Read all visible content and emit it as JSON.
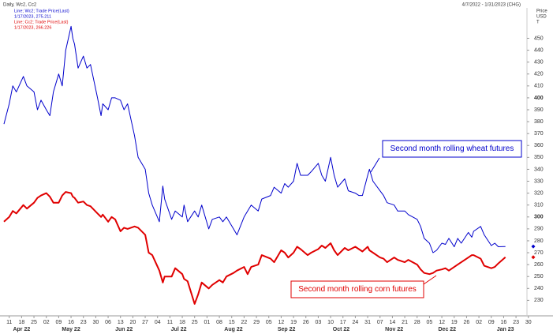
{
  "chart_data": {
    "type": "line",
    "title": "Daily, Wc2, Cc2",
    "date_range": "4/7/2022 - 1/31/2023 (CHG)",
    "y_axis_label": [
      "Price",
      "USD",
      "T"
    ],
    "x": [
      "2022-04-08",
      "2022-04-11",
      "2022-04-13",
      "2022-04-15",
      "2022-04-19",
      "2022-04-21",
      "2022-04-25",
      "2022-04-27",
      "2022-04-29",
      "2022-05-02",
      "2022-05-04",
      "2022-05-06",
      "2022-05-09",
      "2022-05-11",
      "2022-05-13",
      "2022-05-16",
      "2022-05-17",
      "2022-05-18",
      "2022-05-20",
      "2022-05-23",
      "2022-05-25",
      "2022-05-27",
      "2022-05-31",
      "2022-06-02",
      "2022-06-03",
      "2022-06-06",
      "2022-06-08",
      "2022-06-10",
      "2022-06-13",
      "2022-06-15",
      "2022-06-17",
      "2022-06-21",
      "2022-06-23",
      "2022-06-27",
      "2022-06-29",
      "2022-07-01",
      "2022-07-05",
      "2022-07-07",
      "2022-07-08",
      "2022-07-12",
      "2022-07-14",
      "2022-07-18",
      "2022-07-19",
      "2022-07-21",
      "2022-07-25",
      "2022-07-27",
      "2022-07-29",
      "2022-08-02",
      "2022-08-04",
      "2022-08-08",
      "2022-08-10",
      "2022-08-12",
      "2022-08-16",
      "2022-08-18",
      "2022-08-22",
      "2022-08-24",
      "2022-08-26",
      "2022-08-30",
      "2022-09-01",
      "2022-09-06",
      "2022-09-08",
      "2022-09-12",
      "2022-09-14",
      "2022-09-16",
      "2022-09-19",
      "2022-09-21",
      "2022-09-23",
      "2022-09-27",
      "2022-09-29",
      "2022-10-03",
      "2022-10-05",
      "2022-10-07",
      "2022-10-10",
      "2022-10-12",
      "2022-10-14",
      "2022-10-18",
      "2022-10-20",
      "2022-10-24",
      "2022-10-26",
      "2022-10-28",
      "2022-10-31",
      "2022-11-01",
      "2022-11-03",
      "2022-11-07",
      "2022-11-09",
      "2022-11-11",
      "2022-11-15",
      "2022-11-17",
      "2022-11-21",
      "2022-11-23",
      "2022-11-28",
      "2022-11-30",
      "2022-12-02",
      "2022-12-05",
      "2022-12-07",
      "2022-12-09",
      "2022-12-12",
      "2022-12-14",
      "2022-12-16",
      "2022-12-19",
      "2022-12-21",
      "2022-12-23",
      "2022-12-27",
      "2022-12-29",
      "2022-12-30",
      "2023-01-03",
      "2023-01-05",
      "2023-01-09",
      "2023-01-11",
      "2023-01-13",
      "2023-01-17"
    ],
    "series": [
      {
        "name": "Line; Wc2; Trade Price(Last)",
        "legend_note": "1/17/2023, 275.211",
        "color": "#0000cc",
        "values": [
          378,
          395,
          410,
          405,
          418,
          410,
          405,
          390,
          398,
          390,
          385,
          405,
          420,
          410,
          440,
          460,
          450,
          445,
          425,
          435,
          425,
          428,
          400,
          385,
          395,
          390,
          400,
          400,
          398,
          390,
          395,
          368,
          350,
          340,
          320,
          310,
          296,
          326,
          315,
          298,
          305,
          300,
          310,
          296,
          305,
          300,
          310,
          290,
          298,
          300,
          296,
          300,
          290,
          285,
          300,
          305,
          310,
          305,
          315,
          318,
          325,
          320,
          328,
          325,
          330,
          345,
          335,
          335,
          338,
          345,
          335,
          330,
          350,
          335,
          325,
          332,
          322,
          320,
          318,
          318,
          335,
          340,
          330,
          322,
          318,
          312,
          310,
          305,
          305,
          302,
          298,
          292,
          282,
          278,
          270,
          272,
          278,
          277,
          282,
          275,
          282,
          278,
          287,
          283,
          288,
          292,
          285,
          276,
          278,
          275,
          275.211
        ]
      },
      {
        "name": "Line; Cc2; Trade Price(Last)",
        "legend_note": "1/17/2023, 266.226",
        "color": "#e00000",
        "values": [
          296,
          300,
          305,
          303,
          310,
          307,
          312,
          316,
          318,
          320,
          317,
          312,
          312,
          318,
          321,
          320,
          317,
          316,
          312,
          313,
          310,
          309,
          303,
          300,
          302,
          296,
          300,
          298,
          288,
          291,
          290,
          292,
          291,
          285,
          270,
          268,
          255,
          245,
          250,
          250,
          257,
          252,
          248,
          246,
          227,
          235,
          245,
          240,
          243,
          247,
          245,
          250,
          253,
          255,
          258,
          252,
          258,
          260,
          268,
          265,
          262,
          272,
          270,
          266,
          270,
          275,
          273,
          268,
          270,
          273,
          276,
          274,
          278,
          272,
          268,
          274,
          272,
          275,
          273,
          271,
          275,
          272,
          270,
          266,
          265,
          262,
          266,
          264,
          262,
          264,
          260,
          256,
          253,
          252,
          253,
          255,
          256,
          257,
          255,
          258,
          260,
          262,
          266,
          268,
          268,
          265,
          259,
          257,
          258,
          261,
          266.226
        ]
      }
    ],
    "xlim": [
      "2022-04-08",
      "2023-01-31"
    ],
    "xticks": [
      {
        "value": "2022-04-11",
        "label": "11"
      },
      {
        "value": "2022-04-18",
        "label": "18"
      },
      {
        "value": "2022-04-25",
        "label": "25"
      },
      {
        "value": "2022-05-02",
        "label": "02"
      },
      {
        "value": "2022-05-09",
        "label": "09"
      },
      {
        "value": "2022-05-16",
        "label": "16"
      },
      {
        "value": "2022-05-23",
        "label": "23"
      },
      {
        "value": "2022-05-30",
        "label": "30"
      },
      {
        "value": "2022-06-06",
        "label": "06"
      },
      {
        "value": "2022-06-13",
        "label": "13"
      },
      {
        "value": "2022-06-20",
        "label": "20"
      },
      {
        "value": "2022-06-27",
        "label": "27"
      },
      {
        "value": "2022-07-04",
        "label": "04"
      },
      {
        "value": "2022-07-11",
        "label": "11"
      },
      {
        "value": "2022-07-18",
        "label": "18"
      },
      {
        "value": "2022-07-25",
        "label": "25"
      },
      {
        "value": "2022-08-01",
        "label": "01"
      },
      {
        "value": "2022-08-08",
        "label": "08"
      },
      {
        "value": "2022-08-15",
        "label": "15"
      },
      {
        "value": "2022-08-22",
        "label": "22"
      },
      {
        "value": "2022-08-29",
        "label": "29"
      },
      {
        "value": "2022-09-05",
        "label": "05"
      },
      {
        "value": "2022-09-12",
        "label": "12"
      },
      {
        "value": "2022-09-19",
        "label": "19"
      },
      {
        "value": "2022-09-26",
        "label": "26"
      },
      {
        "value": "2022-10-03",
        "label": "03"
      },
      {
        "value": "2022-10-10",
        "label": "10"
      },
      {
        "value": "2022-10-17",
        "label": "17"
      },
      {
        "value": "2022-10-24",
        "label": "24"
      },
      {
        "value": "2022-10-31",
        "label": "31"
      },
      {
        "value": "2022-11-07",
        "label": "07"
      },
      {
        "value": "2022-11-14",
        "label": "14"
      },
      {
        "value": "2022-11-21",
        "label": "21"
      },
      {
        "value": "2022-11-28",
        "label": "28"
      },
      {
        "value": "2022-12-05",
        "label": "05"
      },
      {
        "value": "2022-12-12",
        "label": "12"
      },
      {
        "value": "2022-12-19",
        "label": "19"
      },
      {
        "value": "2022-12-26",
        "label": "26"
      },
      {
        "value": "2023-01-02",
        "label": "02"
      },
      {
        "value": "2023-01-09",
        "label": "09"
      },
      {
        "value": "2023-01-16",
        "label": "16"
      },
      {
        "value": "2023-01-23",
        "label": "23"
      },
      {
        "value": "2023-01-30",
        "label": "30"
      }
    ],
    "month_ticks": [
      {
        "value": "2022-04-18",
        "label": "Apr 22"
      },
      {
        "value": "2022-05-16",
        "label": "May 22"
      },
      {
        "value": "2022-06-15",
        "label": "Jun 22"
      },
      {
        "value": "2022-07-16",
        "label": "Jul 22"
      },
      {
        "value": "2022-08-16",
        "label": "Aug 22"
      },
      {
        "value": "2022-09-15",
        "label": "Sep 22"
      },
      {
        "value": "2022-10-16",
        "label": "Oct 22"
      },
      {
        "value": "2022-11-15",
        "label": "Nov 22"
      },
      {
        "value": "2022-12-15",
        "label": "Dec 22"
      },
      {
        "value": "2023-01-17",
        "label": "Jan 23"
      }
    ],
    "ylim": [
      217,
      475.5
    ],
    "yticks": [
      230,
      240,
      250,
      260,
      270,
      280,
      290,
      300,
      310,
      320,
      330,
      340,
      350,
      360,
      370,
      380,
      390,
      400,
      410,
      420,
      430,
      440,
      450
    ],
    "grid": false,
    "annotations": [
      {
        "text": "Second month rolling wheat futures"
      },
      {
        "text": "Second month rolling corn futures"
      }
    ]
  }
}
